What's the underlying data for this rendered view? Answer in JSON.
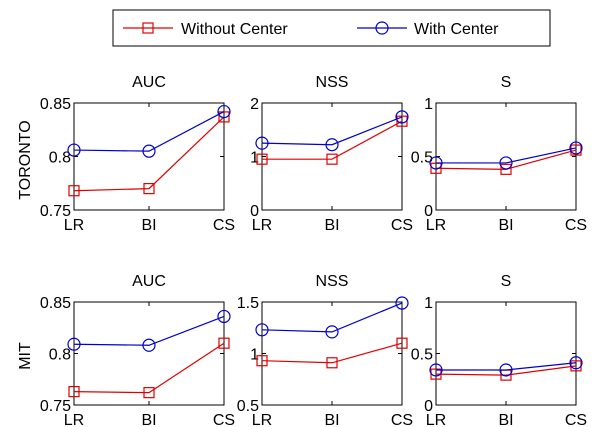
{
  "legend": {
    "entries": [
      {
        "label": "Without Center",
        "color": "#e00000",
        "marker": "square"
      },
      {
        "label": "With Center",
        "color": "#0000cc",
        "marker": "circle"
      }
    ]
  },
  "row_labels": [
    "TORONTO",
    "MIT"
  ],
  "chart_data": [
    {
      "type": "line",
      "dataset": "TORONTO",
      "title": "AUC",
      "categories": [
        "LR",
        "BI",
        "CS"
      ],
      "ylim": [
        0.75,
        0.85
      ],
      "yticks": [
        "0.75",
        "0.8",
        "0.85"
      ],
      "grid": false,
      "series": [
        {
          "name": "Without Center",
          "values": [
            0.768,
            0.77,
            0.837
          ]
        },
        {
          "name": "With Center",
          "values": [
            0.806,
            0.805,
            0.842
          ]
        }
      ]
    },
    {
      "type": "line",
      "dataset": "TORONTO",
      "title": "NSS",
      "categories": [
        "LR",
        "BI",
        "CS"
      ],
      "ylim": [
        0,
        2
      ],
      "yticks": [
        "0",
        "1",
        "2"
      ],
      "grid": false,
      "series": [
        {
          "name": "Without Center",
          "values": [
            0.95,
            0.95,
            1.66
          ]
        },
        {
          "name": "With Center",
          "values": [
            1.25,
            1.22,
            1.74
          ]
        }
      ]
    },
    {
      "type": "line",
      "dataset": "TORONTO",
      "title": "S",
      "categories": [
        "LR",
        "BI",
        "CS"
      ],
      "ylim": [
        0,
        1
      ],
      "yticks": [
        "0",
        "0.5",
        "1"
      ],
      "grid": false,
      "series": [
        {
          "name": "Without Center",
          "values": [
            0.39,
            0.38,
            0.56
          ]
        },
        {
          "name": "With Center",
          "values": [
            0.44,
            0.44,
            0.58
          ]
        }
      ]
    },
    {
      "type": "line",
      "dataset": "MIT",
      "title": "AUC",
      "categories": [
        "LR",
        "BI",
        "CS"
      ],
      "ylim": [
        0.75,
        0.85
      ],
      "yticks": [
        "0.75",
        "0.8",
        "0.85"
      ],
      "grid": false,
      "series": [
        {
          "name": "Without Center",
          "values": [
            0.763,
            0.762,
            0.81
          ]
        },
        {
          "name": "With Center",
          "values": [
            0.809,
            0.808,
            0.836
          ]
        }
      ]
    },
    {
      "type": "line",
      "dataset": "MIT",
      "title": "NSS",
      "categories": [
        "LR",
        "BI",
        "CS"
      ],
      "ylim": [
        0.5,
        1.5
      ],
      "yticks": [
        "0.5",
        "1",
        "1.5"
      ],
      "grid": false,
      "series": [
        {
          "name": "Without Center",
          "values": [
            0.93,
            0.91,
            1.1
          ]
        },
        {
          "name": "With Center",
          "values": [
            1.23,
            1.21,
            1.49
          ]
        }
      ]
    },
    {
      "type": "line",
      "dataset": "MIT",
      "title": "S",
      "categories": [
        "LR",
        "BI",
        "CS"
      ],
      "ylim": [
        0,
        1
      ],
      "yticks": [
        "0",
        "0.5",
        "1"
      ],
      "grid": false,
      "series": [
        {
          "name": "Without Center",
          "values": [
            0.3,
            0.29,
            0.38
          ]
        },
        {
          "name": "With Center",
          "values": [
            0.34,
            0.34,
            0.41
          ]
        }
      ]
    }
  ]
}
